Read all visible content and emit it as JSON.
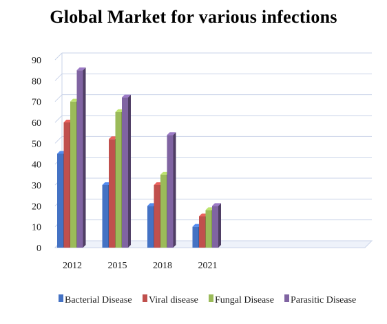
{
  "chart_data": {
    "type": "bar",
    "title": "Global Market for various infections",
    "categories": [
      "2012",
      "2015",
      "2018",
      "2021"
    ],
    "series": [
      {
        "name": "Bacterial Disease",
        "color": "#4472C4",
        "values": [
          45,
          30,
          20,
          10
        ]
      },
      {
        "name": "Viral disease",
        "color": "#C0504D",
        "values": [
          60,
          52,
          30,
          15
        ]
      },
      {
        "name": "Fungal Disease",
        "color": "#9BBB59",
        "values": [
          70,
          65,
          35,
          18
        ]
      },
      {
        "name": "Parasitic Disease",
        "color": "#8064A2",
        "values": [
          85,
          72,
          54,
          20
        ]
      }
    ],
    "ylim": [
      0,
      90
    ],
    "yticks": [
      0,
      10,
      20,
      30,
      40,
      50,
      60,
      70,
      80,
      90
    ],
    "grid": true,
    "legend_position": "bottom"
  }
}
